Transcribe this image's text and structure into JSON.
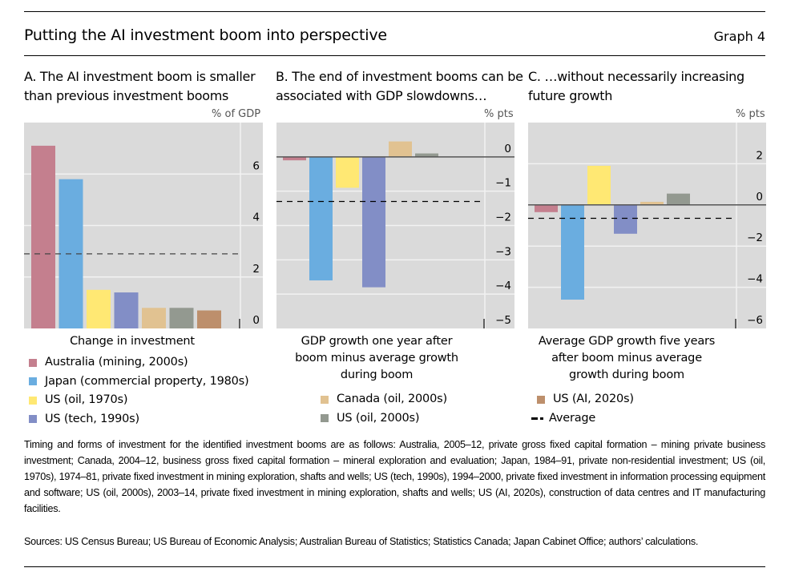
{
  "header": {
    "title": "Putting the AI investment boom into perspective",
    "graph_number": "Graph 4"
  },
  "colors": {
    "Australia (mining, 2000s)": "#c47f8e",
    "Japan (commercial property, 1980s)": "#6aade0",
    "US (oil, 1970s)": "#ffe873",
    "US (tech, 1990s)": "#828ec6",
    "Canada (oil, 2000s)": "#e1c291",
    "US (oil, 2000s)": "#939990",
    "US (AI, 2020s)": "#bd8f6c",
    "plot_background": "#dadada",
    "gridline": "#f2f2f2"
  },
  "chart_data": [
    {
      "type": "bar",
      "panel": "A",
      "title": "A. The AI investment boom is smaller than previous investment booms",
      "unit_label": "% of GDP",
      "xlabel": "Change in investment",
      "ylabel": "% of GDP",
      "axis_side": "right",
      "ylim": [
        0,
        8
      ],
      "yticks": [
        0,
        2,
        4,
        6
      ],
      "ytick_labels": [
        "0",
        "2",
        "4",
        "6"
      ],
      "categories": [
        "Australia (mining, 2000s)",
        "Japan (commercial property, 1980s)",
        "US (oil, 1970s)",
        "US (tech, 1990s)",
        "Canada (oil, 2000s)",
        "US (oil, 2000s)",
        "US (AI, 2020s)"
      ],
      "values": [
        7.1,
        5.8,
        1.5,
        1.4,
        0.8,
        0.8,
        0.7
      ],
      "average": 2.9,
      "grid": true
    },
    {
      "type": "bar",
      "panel": "B",
      "title": "B. The end of investment booms can be associated with GDP slowdowns…",
      "unit_label": "% pts",
      "xlabel": "GDP growth one year after boom minus average growth during boom",
      "ylabel": "% pts",
      "axis_side": "right",
      "ylim": [
        -5,
        1
      ],
      "yticks": [
        0,
        -1,
        -2,
        -3,
        -4,
        -5
      ],
      "ytick_labels": [
        "0",
        "−1",
        "−2",
        "−3",
        "−4",
        "−5"
      ],
      "categories": [
        "Australia (mining, 2000s)",
        "Japan (commercial property, 1980s)",
        "US (oil, 1970s)",
        "US (tech, 1990s)",
        "Canada (oil, 2000s)",
        "US (oil, 2000s)",
        "US (AI, 2020s)"
      ],
      "values": [
        -0.1,
        -3.6,
        -0.9,
        -3.8,
        0.45,
        0.1,
        null
      ],
      "average": -1.3,
      "grid": true
    },
    {
      "type": "bar",
      "panel": "C",
      "title": "C. …without necessarily increasing future growth",
      "unit_label": "% pts",
      "xlabel": "Average GDP growth five years after boom minus average growth during boom",
      "ylabel": "% pts",
      "axis_side": "right",
      "ylim": [
        -6,
        4
      ],
      "yticks": [
        2,
        0,
        -2,
        -4,
        -6
      ],
      "ytick_labels": [
        "2",
        "0",
        "−2",
        "−4",
        "−6"
      ],
      "categories": [
        "Australia (mining, 2000s)",
        "Japan (commercial property, 1980s)",
        "US (oil, 1970s)",
        "US (tech, 1990s)",
        "Canada (oil, 2000s)",
        "US (oil, 2000s)",
        "US (AI, 2020s)"
      ],
      "values": [
        -0.35,
        -4.6,
        1.9,
        -1.4,
        0.15,
        0.55,
        null
      ],
      "average": -0.65,
      "grid": true
    }
  ],
  "panels": {
    "a": {
      "title": "A. The AI investment boom is smaller than previous investment booms",
      "unit": "% of GDP",
      "xlabel": "Change in investment"
    },
    "b": {
      "title": "B. The end of investment booms can be associated with GDP slowdowns…",
      "unit": "% pts",
      "xlabel": "GDP growth one year after boom minus average growth during boom"
    },
    "c": {
      "title": "C. …without necessarily increasing future growth",
      "unit": "% pts",
      "xlabel": "Average GDP growth five years after boom minus average growth during boom"
    }
  },
  "legend": {
    "col1": [
      "Australia (mining, 2000s)",
      "Japan (commercial property, 1980s)",
      "US (oil, 1970s)",
      "US (tech, 1990s)"
    ],
    "col2": [
      "Canada (oil, 2000s)",
      "US (oil, 2000s)"
    ],
    "col3": [
      "US (AI, 2020s)"
    ],
    "average_label": "Average"
  },
  "notes": "Timing and forms of investment for the identified investment booms are as follows: Australia, 2005–12, private gross fixed capital formation – mining private business investment; Canada, 2004–12, business gross fixed capital formation – mineral exploration and evaluation; Japan, 1984–91, private non-residential investment; US (oil, 1970s), 1974–81, private fixed investment in mining exploration, shafts and wells; US (tech, 1990s), 1994–2000, private fixed investment in information processing equipment and software; US (oil, 2000s), 2003–14, private fixed investment in mining exploration, shafts and wells; US (AI, 2020s), construction of data centres and IT manufacturing facilities.",
  "sources": "Sources: US Census Bureau; US Bureau of Economic Analysis; Australian Bureau of Statistics; Statistics Canada; Japan Cabinet Office; authors’ calculations."
}
